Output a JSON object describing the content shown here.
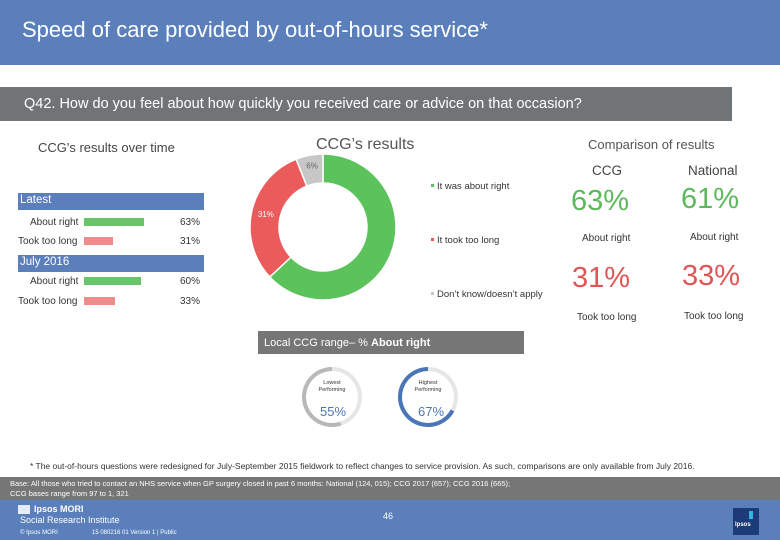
{
  "header": {
    "title": "Speed of care provided by out-of-hours service*"
  },
  "question": {
    "text": "Q42. How do you feel about how quickly you received care or advice on that occasion?"
  },
  "left_panel": {
    "title": "CCG's results over time",
    "groups": [
      {
        "label": "Latest",
        "rows": [
          {
            "label": "About right",
            "value": 63,
            "display": "63%",
            "color": "#6ac46a"
          },
          {
            "label": "Took too long",
            "value": 31,
            "display": "31%",
            "color": "#f08b8b"
          }
        ]
      },
      {
        "label": "July 2016",
        "rows": [
          {
            "label": "About right",
            "value": 60,
            "display": "60%",
            "color": "#6ac46a"
          },
          {
            "label": "Took too long",
            "value": 33,
            "display": "33%",
            "color": "#f08b8b"
          }
        ]
      }
    ]
  },
  "donut": {
    "title": "CCG’s results",
    "legend": [
      "It was about right",
      "It took too long",
      "Don’t know/doesn’t apply"
    ]
  },
  "comparison": {
    "title": "Comparison of results",
    "col_ccg": "CCG",
    "col_national": "National",
    "about_right": {
      "ccg": "63%",
      "national": "61%",
      "label": "About right"
    },
    "too_long": {
      "ccg": "31%",
      "national": "33%",
      "label": "Took too long"
    },
    "colors": {
      "green": "#5cb85c",
      "red": "#e05555"
    }
  },
  "range": {
    "title_plain": "Local CCG range– % ",
    "title_bold": "About right",
    "lowest": {
      "label_line1": "Lowest",
      "label_line2": "Performing",
      "value": 55,
      "display": "55%",
      "color": "#b8b8b8"
    },
    "highest": {
      "label_line1": "Highest",
      "label_line2": "Performing",
      "value": 67,
      "display": "67%",
      "color": "#4a76b8"
    }
  },
  "chart_data": [
    {
      "type": "pie",
      "title": "CCG’s results",
      "categories": [
        "It was about right",
        "It took too long",
        "Don’t know/doesn’t apply"
      ],
      "values": [
        63,
        31,
        6
      ],
      "labels": [
        "63%",
        "31%",
        "6%"
      ],
      "colors": [
        "#5cc25c",
        "#ec5b5b",
        "#c7c7c7"
      ]
    },
    {
      "type": "bar",
      "title": "CCG's results over time",
      "categories": [
        "Latest",
        "July 2016"
      ],
      "series": [
        {
          "name": "About right",
          "values": [
            63,
            60
          ]
        },
        {
          "name": "Took too long",
          "values": [
            31,
            33
          ]
        }
      ],
      "ylim": [
        0,
        100
      ]
    }
  ],
  "footnote": "* The out-of-hours questions were redesigned for July-September 2015 fieldwork to reflect changes to service provision. As such, comparisons are only available from July 2016.",
  "base": {
    "line1": "Base: All those who tried to contact an NHS service when GP surgery closed in past 6 months: National (124, 015); CCG 2017 (657); CCG 2016 (665);",
    "line2": "CCG bases range from 97 to 1, 321"
  },
  "footer": {
    "logo_line1": "Ipsos MORI",
    "logo_line2": "Social Research Institute",
    "copyright": "© Ipsos MORI",
    "reference": "15 080216 01 Version 1 | Public",
    "page_number": "46",
    "badge_text": "Ipsos"
  }
}
